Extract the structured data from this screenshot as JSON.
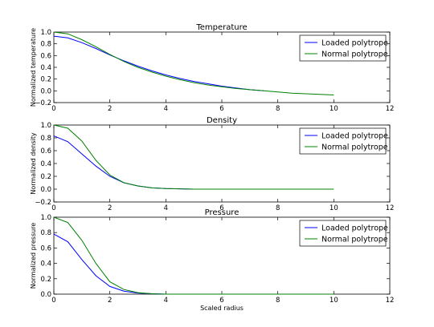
{
  "chart_data": [
    {
      "type": "line",
      "title": "Temperature",
      "xlabel": "",
      "ylabel": "Normalized temperature",
      "xlim": [
        0,
        12
      ],
      "ylim": [
        -0.2,
        1.0
      ],
      "x_ticks": [
        "0",
        "2",
        "4",
        "6",
        "8",
        "10",
        "12"
      ],
      "y_ticks": [
        "−0.2",
        "0.0",
        "0.2",
        "0.4",
        "0.6",
        "0.8",
        "1.0"
      ],
      "grid": false,
      "legend_position": "top-right",
      "series": [
        {
          "name": "Loaded polytrope",
          "color": "#0000ff",
          "x": [
            0,
            0.5,
            1,
            1.5,
            2,
            2.5,
            3,
            3.5,
            4,
            4.5,
            5,
            5.5,
            6,
            6.5,
            7,
            7.5
          ],
          "y": [
            0.93,
            0.9,
            0.82,
            0.72,
            0.61,
            0.51,
            0.42,
            0.34,
            0.27,
            0.21,
            0.16,
            0.12,
            0.08,
            0.05,
            0.02,
            0.0
          ]
        },
        {
          "name": "Normal polytrope",
          "color": "#008000",
          "x": [
            0,
            0.5,
            1,
            1.5,
            2,
            2.5,
            3,
            3.5,
            4,
            4.5,
            5,
            5.5,
            6,
            6.5,
            7,
            7.5,
            8,
            8.5,
            9,
            9.5,
            10
          ],
          "y": [
            1.0,
            0.97,
            0.87,
            0.75,
            0.62,
            0.5,
            0.4,
            0.32,
            0.25,
            0.19,
            0.14,
            0.1,
            0.07,
            0.04,
            0.02,
            0.0,
            -0.02,
            -0.04,
            -0.05,
            -0.06,
            -0.07
          ]
        }
      ]
    },
    {
      "type": "line",
      "title": "Density",
      "xlabel": "",
      "ylabel": "Normalized density",
      "xlim": [
        0,
        12
      ],
      "ylim": [
        -0.2,
        1.0
      ],
      "x_ticks": [
        "0",
        "2",
        "4",
        "6",
        "8",
        "10",
        "12"
      ],
      "y_ticks": [
        "−0.2",
        "0.0",
        "0.2",
        "0.4",
        "0.6",
        "0.8",
        "1.0"
      ],
      "grid": false,
      "legend_position": "top-right",
      "series": [
        {
          "name": "Loaded polytrope",
          "color": "#0000ff",
          "x": [
            0,
            0.5,
            1,
            1.5,
            2,
            2.5,
            3,
            3.5,
            4,
            5,
            6,
            7,
            7.5
          ],
          "y": [
            0.83,
            0.74,
            0.55,
            0.36,
            0.2,
            0.1,
            0.05,
            0.02,
            0.01,
            0.0,
            0.0,
            0.0,
            0.0
          ]
        },
        {
          "name": "Normal polytrope",
          "color": "#008000",
          "x": [
            0,
            0.5,
            1,
            1.5,
            2,
            2.5,
            3,
            3.5,
            4,
            5,
            6,
            7,
            8,
            9,
            10
          ],
          "y": [
            1.0,
            0.95,
            0.75,
            0.45,
            0.22,
            0.1,
            0.05,
            0.02,
            0.01,
            0.0,
            0.0,
            0.0,
            0.0,
            0.0,
            0.0
          ]
        }
      ]
    },
    {
      "type": "line",
      "title": "Pressure",
      "xlabel": "Scaled radius",
      "ylabel": "Normalized pressure",
      "xlim": [
        0,
        12
      ],
      "ylim": [
        0.0,
        1.0
      ],
      "x_ticks": [
        "0",
        "2",
        "4",
        "6",
        "8",
        "10",
        "12"
      ],
      "y_ticks": [
        "0.0",
        "0.2",
        "0.4",
        "0.6",
        "0.8",
        "1.0"
      ],
      "grid": false,
      "legend_position": "top-right",
      "series": [
        {
          "name": "Loaded polytrope",
          "color": "#0000ff",
          "x": [
            0,
            0.5,
            1,
            1.5,
            2,
            2.5,
            3,
            3.5,
            4,
            5,
            6,
            7,
            7.5
          ],
          "y": [
            0.78,
            0.68,
            0.45,
            0.24,
            0.1,
            0.04,
            0.015,
            0.005,
            0.0,
            0.0,
            0.0,
            0.0,
            0.0
          ]
        },
        {
          "name": "Normal polytrope",
          "color": "#008000",
          "x": [
            0,
            0.5,
            1,
            1.5,
            2,
            2.5,
            3,
            3.5,
            4,
            5,
            6,
            7,
            8,
            9,
            10
          ],
          "y": [
            1.0,
            0.93,
            0.7,
            0.4,
            0.16,
            0.06,
            0.02,
            0.005,
            0.0,
            0.0,
            0.0,
            0.0,
            0.0,
            0.0,
            0.0
          ]
        }
      ]
    }
  ]
}
